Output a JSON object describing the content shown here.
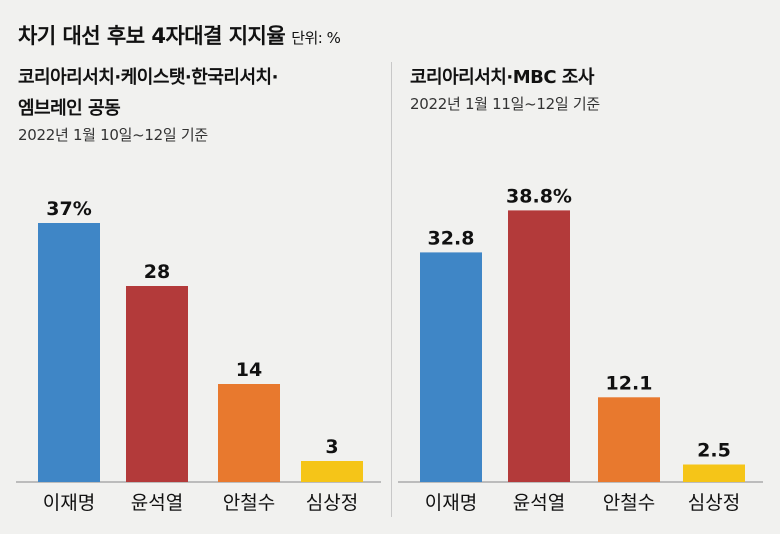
{
  "header": {
    "title": "차기 대선 후보 4자대결 지지율",
    "unit": "단위: %"
  },
  "colors": {
    "이재명": "#3f86c6",
    "윤석열": "#b33a3a",
    "안철수": "#e8792e",
    "심상정": "#f5c518"
  },
  "chart_data": [
    {
      "type": "bar",
      "source_line1": "코리아리서치·케이스탯·한국리서치·",
      "source_line2": "엠브레인 공동",
      "date": "2022년 1월 10일~12일 기준",
      "categories": [
        "이재명",
        "윤석열",
        "안철수",
        "심상정"
      ],
      "values": [
        37,
        28,
        14,
        3
      ],
      "value_labels": [
        "37%",
        "28",
        "14",
        "3"
      ],
      "ylim": [
        0,
        40
      ]
    },
    {
      "type": "bar",
      "source_line1": "코리아리서치·MBC 조사",
      "date": "2022년 1월 11일~12일 기준",
      "categories": [
        "이재명",
        "윤석열",
        "안철수",
        "심상정"
      ],
      "values": [
        32.8,
        38.8,
        12.1,
        2.5
      ],
      "value_labels": [
        "32.8",
        "38.8%",
        "12.1",
        "2.5"
      ],
      "ylim": [
        0,
        40
      ]
    }
  ]
}
